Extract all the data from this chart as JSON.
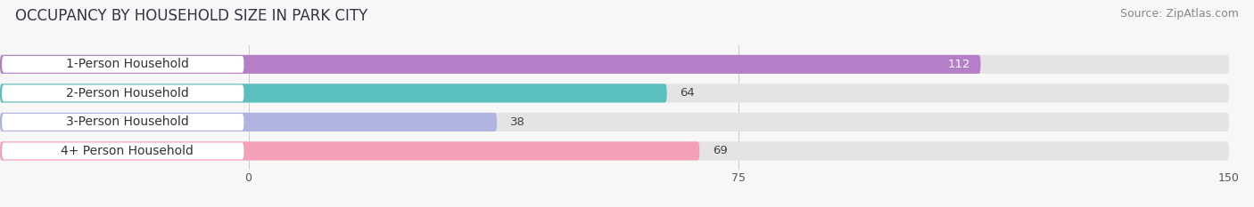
{
  "title": "OCCUPANCY BY HOUSEHOLD SIZE IN PARK CITY",
  "source": "Source: ZipAtlas.com",
  "categories": [
    "1-Person Household",
    "2-Person Household",
    "3-Person Household",
    "4+ Person Household"
  ],
  "values": [
    112,
    64,
    38,
    69
  ],
  "bar_colors": [
    "#b57fc8",
    "#5bbfbf",
    "#b0b4e0",
    "#f4a0b8"
  ],
  "label_colors": [
    "#ffffff",
    "#444444",
    "#444444",
    "#444444"
  ],
  "xlim": [
    0,
    150
  ],
  "xticks": [
    0,
    75,
    150
  ],
  "background_color": "#f7f7f7",
  "bar_bg_color": "#e4e4e4",
  "title_fontsize": 12,
  "source_fontsize": 9,
  "label_fontsize": 10,
  "value_fontsize": 9.5
}
